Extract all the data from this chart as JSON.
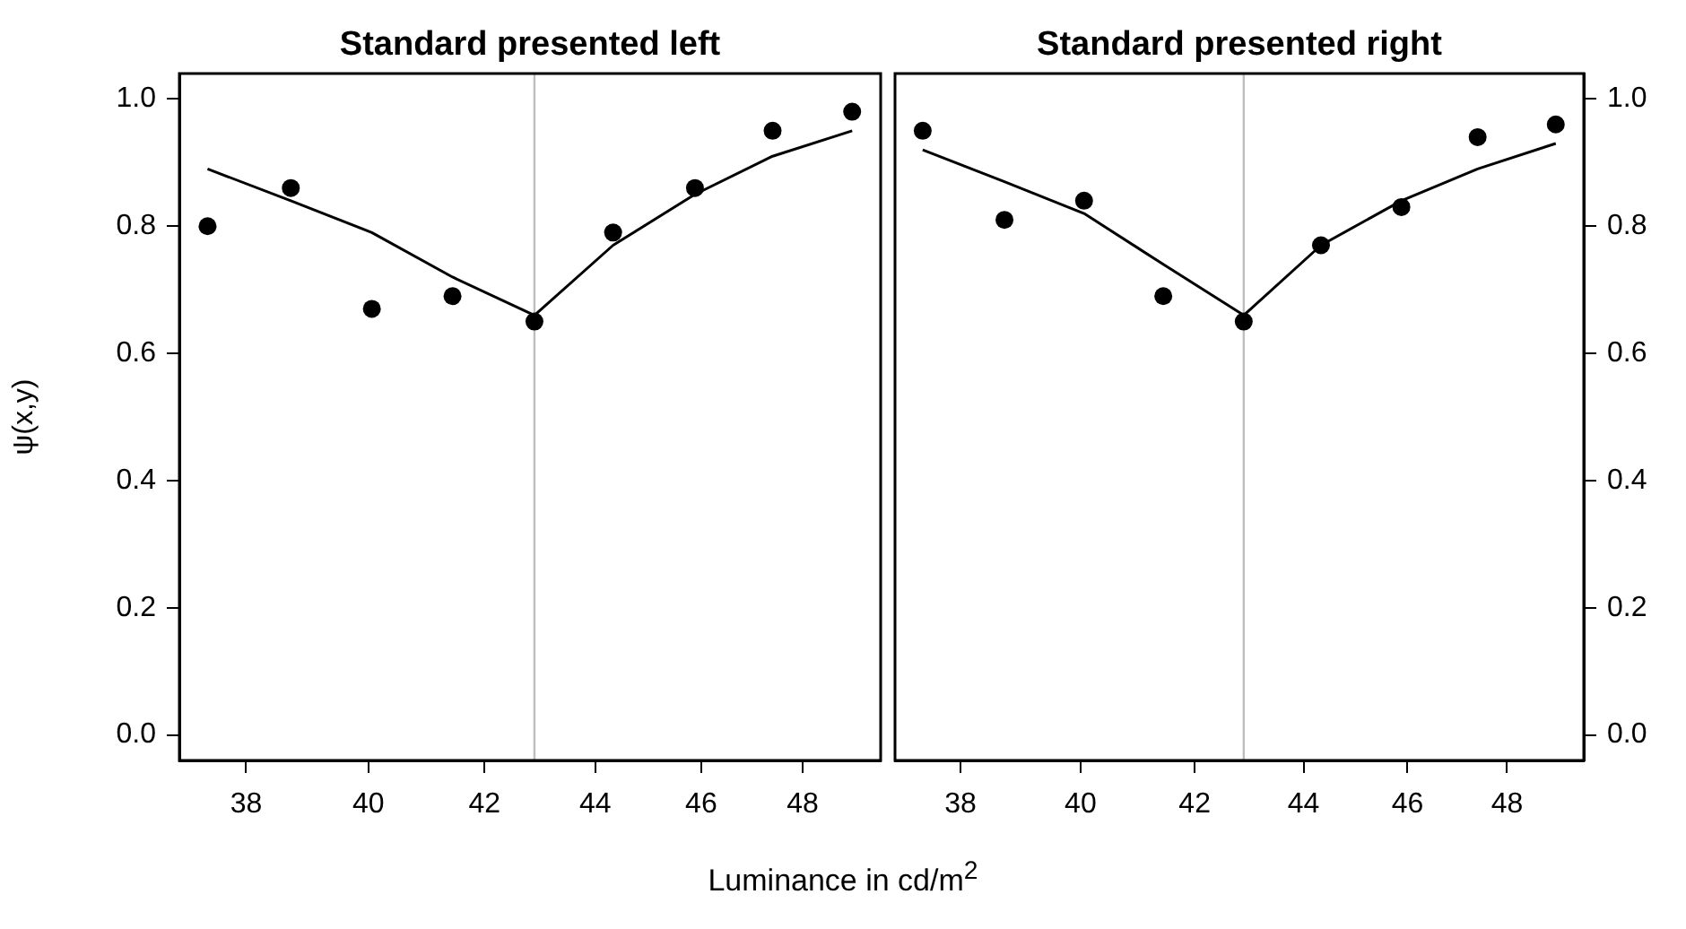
{
  "chart_data": [
    {
      "type": "scatter",
      "title": "Standard presented left",
      "xlabel": "Luminance in cd/m$^{2}$",
      "ylabel": "ψ(x,y)",
      "log": "x",
      "xlim": [
        36.95,
        49.6
      ],
      "xticks": [
        38,
        40,
        42,
        44,
        46,
        48
      ],
      "ylim": [
        -0.04,
        1.04
      ],
      "yticks": [
        {
          "value": 0,
          "label": "0.0"
        },
        0.2,
        0.4,
        0.6,
        0.8,
        {
          "value": 1,
          "label": "1.0"
        }
      ],
      "x": [
        37.39,
        38.72,
        40.06,
        41.44,
        42.89,
        44.33,
        45.88,
        47.4,
        49.01
      ],
      "series": [
        {
          "type": "scatter",
          "marker": "circle",
          "color": "#000000",
          "values": [
            0.8,
            0.86,
            0.67,
            0.69,
            0.65,
            0.79,
            0.86,
            0.95,
            0.98
          ]
        },
        {
          "type": "line",
          "marker": "none",
          "line_style": "solid",
          "color": "#000000",
          "x": [
            37.39,
            38.72,
            40.06,
            41.44,
            42.89,
            44.33,
            45.88,
            47.4,
            49.01
          ],
          "values": [
            0.89,
            0.84,
            0.79,
            0.72,
            0.66,
            0.77,
            0.85,
            0.91,
            0.95
          ]
        }
      ],
      "ref_lines": [
        {
          "axis": "x",
          "value": 42.89,
          "color": "#bebebe"
        }
      ]
    },
    {
      "type": "scatter",
      "title": "Standard presented right",
      "log": "x",
      "xlim": [
        36.95,
        49.6
      ],
      "xticks": [
        38,
        40,
        42,
        44,
        46,
        48
      ],
      "y2lim": [
        -0.04,
        1.04
      ],
      "y2ticks": [
        {
          "value": 0,
          "label": "0.0"
        },
        0.2,
        0.4,
        0.6,
        0.8,
        {
          "value": 1,
          "label": "1.0"
        }
      ],
      "x": [
        37.39,
        38.72,
        40.06,
        41.44,
        42.89,
        44.33,
        45.88,
        47.4,
        49.01
      ],
      "series": [
        {
          "type": "scatter",
          "axis": "y2",
          "marker": "circle",
          "color": "#000000",
          "values": [
            0.95,
            0.81,
            0.84,
            0.69,
            0.65,
            0.77,
            0.83,
            0.94,
            0.96
          ]
        },
        {
          "type": "line",
          "axis": "y2",
          "marker": "none",
          "line_style": "solid",
          "color": "#000000",
          "x": [
            37.39,
            38.72,
            40.06,
            41.44,
            42.89,
            44.33,
            45.88,
            47.4,
            49.01
          ],
          "values": [
            0.92,
            0.87,
            0.82,
            0.74,
            0.66,
            0.77,
            0.84,
            0.89,
            0.93
          ]
        }
      ],
      "ref_lines": [
        {
          "axis": "x",
          "value": 42.89,
          "color": "#bebebe"
        }
      ]
    }
  ]
}
